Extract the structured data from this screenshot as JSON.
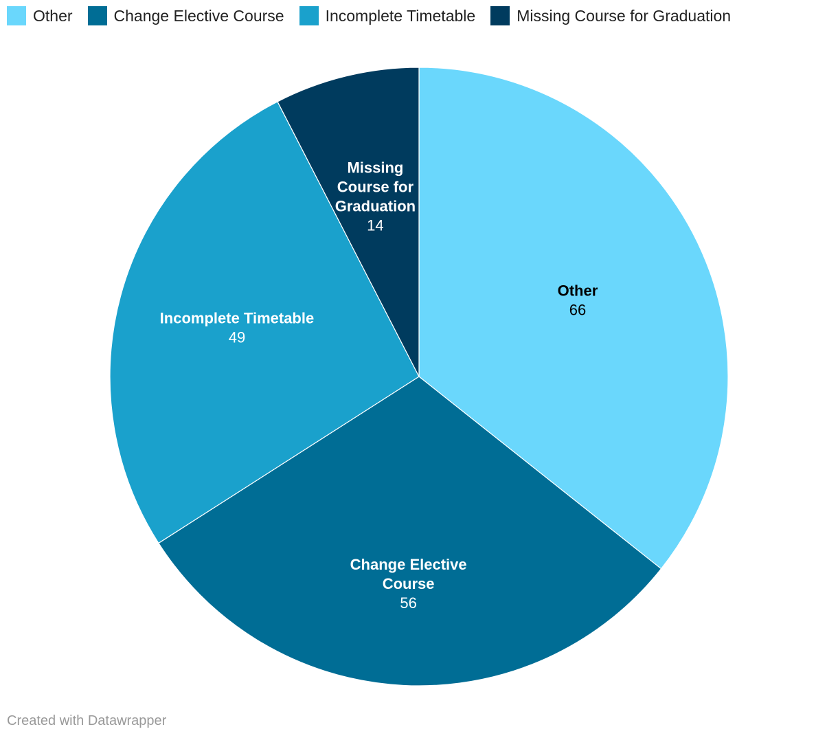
{
  "chart_data": {
    "type": "pie",
    "categories": [
      "Other",
      "Change Elective Course",
      "Incomplete Timetable",
      "Missing Course for Graduation"
    ],
    "values": [
      66,
      56,
      49,
      14
    ],
    "colors": [
      "#6ad7fc",
      "#006d95",
      "#1aa1cc",
      "#003b5e"
    ],
    "label_colors": [
      "#000000",
      "#ffffff",
      "#ffffff",
      "#ffffff"
    ],
    "label_lines": [
      [
        "Other"
      ],
      [
        "Change Elective",
        "Course"
      ],
      [
        "Incomplete Timetable"
      ],
      [
        "Missing",
        "Course for",
        "Graduation"
      ]
    ],
    "legend_position": "top-left"
  },
  "footer": {
    "credit": "Created with Datawrapper"
  }
}
